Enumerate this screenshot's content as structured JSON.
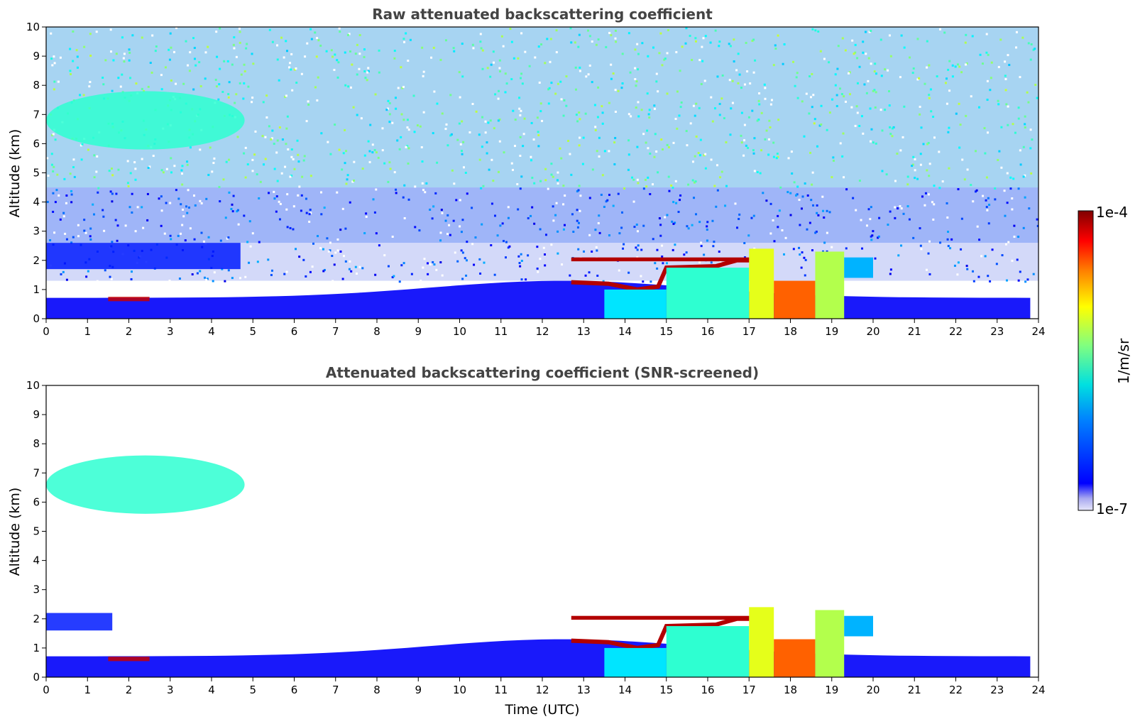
{
  "chart_data": [
    {
      "type": "heatmap",
      "title": "Raw attenuated backscattering coefficient",
      "xlabel": "",
      "ylabel": "Altitude (km)",
      "xlim": [
        0,
        24
      ],
      "ylim": [
        0,
        10
      ],
      "xticks": [
        "0",
        "1",
        "2",
        "3",
        "4",
        "5",
        "6",
        "7",
        "8",
        "9",
        "10",
        "11",
        "12",
        "13",
        "14",
        "15",
        "16",
        "17",
        "18",
        "19",
        "20",
        "21",
        "22",
        "23",
        "24"
      ],
      "yticks": [
        "0",
        "1",
        "2",
        "3",
        "4",
        "5",
        "6",
        "7",
        "8",
        "9",
        "10"
      ],
      "background": "noisy",
      "features": [
        {
          "kind": "cirrus",
          "x": [
            0,
            4.8
          ],
          "y": [
            5.8,
            7.8
          ],
          "level": 0.42
        },
        {
          "kind": "aerosol-layer",
          "x": [
            0,
            4.7
          ],
          "y": [
            1.7,
            2.6
          ],
          "level": 0.15
        },
        {
          "kind": "boundary-layer",
          "x": [
            0,
            23.8
          ],
          "y": [
            0,
            1.3
          ],
          "level": 0.12
        },
        {
          "kind": "cloud-base",
          "x": [
            1.5,
            2.5
          ],
          "y": [
            0.6,
            0.75
          ],
          "level": 0.93
        },
        {
          "kind": "cloud-top",
          "x": [
            12.7,
            17.2
          ],
          "y": [
            1.0,
            2.1
          ],
          "level": 0.95
        },
        {
          "kind": "convective-cloud",
          "x": [
            13.5,
            20.0
          ],
          "y": [
            0,
            2.4
          ],
          "level": 0.5
        }
      ]
    },
    {
      "type": "heatmap",
      "title": "Attenuated backscattering coefficient (SNR-screened)",
      "xlabel": "Time (UTC)",
      "ylabel": "Altitude (km)",
      "xlim": [
        0,
        24
      ],
      "ylim": [
        0,
        10
      ],
      "xticks": [
        "0",
        "1",
        "2",
        "3",
        "4",
        "5",
        "6",
        "7",
        "8",
        "9",
        "10",
        "11",
        "12",
        "13",
        "14",
        "15",
        "16",
        "17",
        "18",
        "19",
        "20",
        "21",
        "22",
        "23",
        "24"
      ],
      "yticks": [
        "0",
        "1",
        "2",
        "3",
        "4",
        "5",
        "6",
        "7",
        "8",
        "9",
        "10"
      ],
      "background": "screened",
      "features": [
        {
          "kind": "cirrus",
          "x": [
            0,
            4.8
          ],
          "y": [
            5.6,
            7.6
          ],
          "level": 0.42
        },
        {
          "kind": "aerosol-layer",
          "x": [
            0,
            1.6
          ],
          "y": [
            1.6,
            2.2
          ],
          "level": 0.15
        },
        {
          "kind": "boundary-layer",
          "x": [
            0,
            23.8
          ],
          "y": [
            0,
            1.3
          ],
          "level": 0.12
        },
        {
          "kind": "cloud-base",
          "x": [
            1.5,
            2.5
          ],
          "y": [
            0.55,
            0.7
          ],
          "level": 0.93
        },
        {
          "kind": "cloud-top",
          "x": [
            12.7,
            17.2
          ],
          "y": [
            1.0,
            2.1
          ],
          "level": 0.95
        },
        {
          "kind": "convective-cloud",
          "x": [
            13.5,
            20.0
          ],
          "y": [
            0,
            2.4
          ],
          "level": 0.5
        }
      ]
    }
  ],
  "colorbar": {
    "label": "1/m/sr",
    "max_label": "1e-4",
    "min_label": "1e-7",
    "range": [
      1e-07,
      0.0001
    ],
    "scale": "log",
    "colormap": "jet"
  }
}
